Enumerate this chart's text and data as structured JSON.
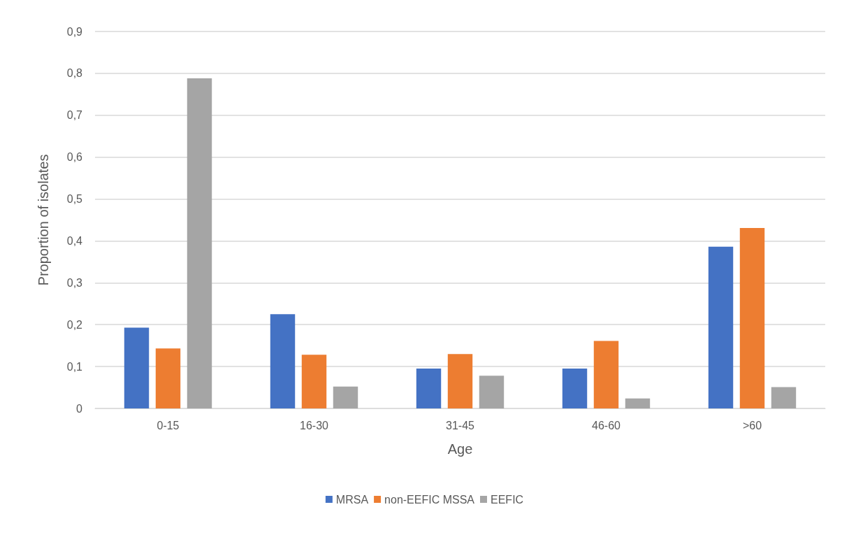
{
  "chart_data": {
    "type": "bar",
    "xlabel": "Age",
    "ylabel": "Proportion of isolates",
    "categories": [
      "0-15",
      "16-30",
      "31-45",
      "46-60",
      ">60"
    ],
    "series": [
      {
        "name": "MRSA",
        "color": "#4472c4",
        "values": [
          0.193,
          0.225,
          0.095,
          0.095,
          0.386
        ]
      },
      {
        "name": "non-EEFIC MSSA",
        "color": "#ed7d31",
        "values": [
          0.143,
          0.128,
          0.13,
          0.161,
          0.431
        ]
      },
      {
        "name": "EEFIC",
        "color": "#a5a5a5",
        "values": [
          0.788,
          0.052,
          0.078,
          0.024,
          0.051
        ]
      }
    ],
    "ylim": [
      0,
      0.9
    ],
    "yticks": [
      0,
      {
        "value": 0.1,
        "label": "0,1"
      },
      {
        "value": 0.2,
        "label": "0,2"
      },
      {
        "value": 0.3,
        "label": "0,3"
      },
      {
        "value": 0.4,
        "label": "0,4"
      },
      {
        "value": 0.5,
        "label": "0,5"
      },
      {
        "value": 0.6,
        "label": "0,6"
      },
      {
        "value": 0.7,
        "label": "0,7"
      },
      {
        "value": 0.8,
        "label": "0,8"
      },
      {
        "value": 0.9,
        "label": "0,9"
      }
    ],
    "grid": "y",
    "legend": "bottom"
  }
}
